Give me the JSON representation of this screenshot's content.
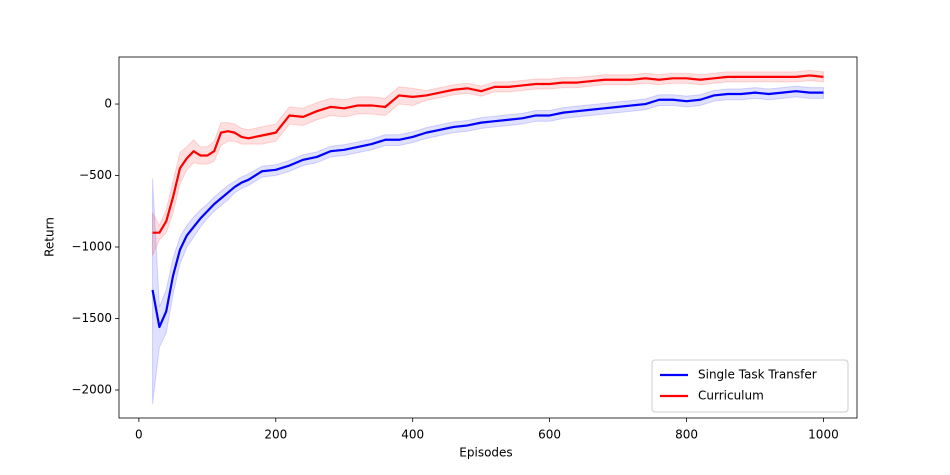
{
  "chart_data": {
    "type": "line",
    "xlabel": "Episodes",
    "ylabel": "Return",
    "x": [
      20,
      30,
      40,
      50,
      60,
      70,
      80,
      90,
      100,
      110,
      120,
      130,
      140,
      150,
      160,
      180,
      200,
      220,
      240,
      260,
      280,
      300,
      320,
      340,
      360,
      380,
      400,
      420,
      440,
      460,
      480,
      500,
      520,
      540,
      560,
      580,
      600,
      620,
      640,
      660,
      680,
      700,
      720,
      740,
      760,
      780,
      800,
      820,
      840,
      860,
      880,
      900,
      920,
      940,
      960,
      980,
      1000
    ],
    "xlim": [
      -29,
      1049
    ],
    "xticks": [
      0,
      200,
      400,
      600,
      800,
      1000
    ],
    "ylim": [
      -2196,
      329
    ],
    "yticks": [
      {
        "value": -2000,
        "label": "−2000"
      },
      {
        "value": -1500,
        "label": "−1500"
      },
      {
        "value": -1000,
        "label": "−1000"
      },
      {
        "value": -500,
        "label": "−500"
      },
      0
    ],
    "legend": "lower right",
    "series": [
      {
        "name": "Single Task Transfer",
        "color": "#0000ff",
        "values": [
          -1300,
          -1560,
          -1450,
          -1200,
          -1020,
          -920,
          -860,
          -800,
          -750,
          -700,
          -660,
          -620,
          -580,
          -550,
          -530,
          -470,
          -460,
          -430,
          -390,
          -370,
          -330,
          -320,
          -300,
          -280,
          -250,
          -250,
          -230,
          -200,
          -180,
          -160,
          -150,
          -130,
          -120,
          -110,
          -100,
          -80,
          -80,
          -60,
          -50,
          -40,
          -30,
          -20,
          -10,
          0,
          30,
          30,
          20,
          30,
          60,
          70,
          70,
          80,
          70,
          80,
          90,
          80,
          80
        ],
        "lower": [
          -2100,
          -1700,
          -1600,
          -1330,
          -1120,
          -1000,
          -930,
          -860,
          -800,
          -750,
          -710,
          -670,
          -620,
          -590,
          -570,
          -510,
          -500,
          -470,
          -430,
          -410,
          -370,
          -360,
          -340,
          -320,
          -290,
          -290,
          -270,
          -240,
          -220,
          -200,
          -190,
          -170,
          -160,
          -150,
          -140,
          -120,
          -120,
          -100,
          -90,
          -80,
          -70,
          -60,
          -50,
          -40,
          -10,
          -10,
          -20,
          -10,
          20,
          30,
          30,
          40,
          30,
          40,
          50,
          40,
          40
        ],
        "upper": [
          -520,
          -1420,
          -1300,
          -1080,
          -930,
          -850,
          -790,
          -740,
          -700,
          -650,
          -610,
          -570,
          -540,
          -510,
          -490,
          -435,
          -425,
          -395,
          -355,
          -335,
          -295,
          -285,
          -265,
          -245,
          -215,
          -215,
          -195,
          -165,
          -145,
          -125,
          -115,
          -95,
          -85,
          -75,
          -65,
          -45,
          -45,
          -25,
          -15,
          -5,
          5,
          15,
          25,
          35,
          65,
          65,
          55,
          65,
          95,
          105,
          105,
          115,
          105,
          115,
          125,
          115,
          115
        ]
      },
      {
        "name": "Curriculum",
        "color": "#ff0000",
        "values": [
          -900,
          -900,
          -820,
          -650,
          -450,
          -380,
          -330,
          -360,
          -360,
          -330,
          -200,
          -190,
          -200,
          -230,
          -240,
          -220,
          -200,
          -80,
          -90,
          -50,
          -20,
          -30,
          -10,
          -10,
          -20,
          60,
          50,
          60,
          80,
          100,
          110,
          90,
          120,
          120,
          130,
          140,
          140,
          150,
          150,
          160,
          170,
          170,
          170,
          180,
          170,
          180,
          180,
          170,
          180,
          190,
          190,
          190,
          190,
          190,
          190,
          200,
          190
        ],
        "lower": [
          -1060,
          -950,
          -900,
          -760,
          -560,
          -460,
          -410,
          -420,
          -420,
          -400,
          -290,
          -260,
          -260,
          -280,
          -280,
          -280,
          -260,
          -140,
          -150,
          -110,
          -80,
          -90,
          -70,
          -70,
          -80,
          0,
          -10,
          25,
          45,
          65,
          75,
          55,
          85,
          85,
          95,
          105,
          105,
          115,
          115,
          125,
          135,
          135,
          135,
          145,
          135,
          145,
          145,
          135,
          145,
          155,
          155,
          155,
          155,
          155,
          155,
          165,
          155
        ],
        "upper": [
          -760,
          -850,
          -740,
          -540,
          -340,
          -300,
          -250,
          -300,
          -300,
          -260,
          -130,
          -130,
          -140,
          -170,
          -180,
          -160,
          -140,
          -20,
          -30,
          10,
          40,
          30,
          50,
          50,
          40,
          120,
          110,
          95,
          115,
          135,
          145,
          125,
          155,
          155,
          165,
          175,
          175,
          185,
          185,
          195,
          205,
          205,
          205,
          215,
          205,
          215,
          215,
          205,
          215,
          225,
          225,
          225,
          225,
          225,
          225,
          235,
          225
        ]
      }
    ]
  }
}
